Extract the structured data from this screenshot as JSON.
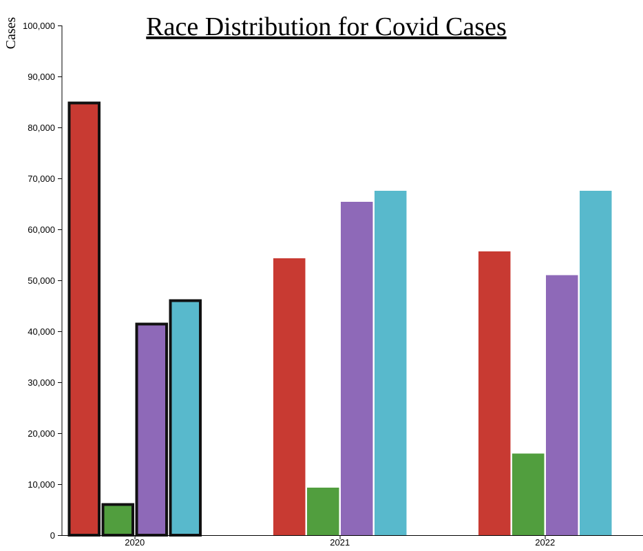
{
  "chart_data": {
    "type": "bar",
    "title": "Race Distribution for Covid Cases",
    "ylabel": "Cases",
    "xlabel": "",
    "categories": [
      "2020",
      "2021",
      "2022"
    ],
    "ylim": [
      0,
      100000
    ],
    "yticks": [
      0,
      10000,
      20000,
      30000,
      40000,
      50000,
      60000,
      70000,
      80000,
      90000,
      100000
    ],
    "ytick_labels": [
      "0",
      "10,000",
      "20,000",
      "30,000",
      "40,000",
      "50,000",
      "60,000",
      "70,000",
      "80,000",
      "90,000",
      "100,000"
    ],
    "grid": false,
    "legend": "none",
    "series": [
      {
        "color": "#c83a32",
        "values": [
          85000,
          54300,
          55700
        ]
      },
      {
        "color": "#519e3e",
        "values": [
          6200,
          9300,
          16000
        ]
      },
      {
        "color": "#8e69b8",
        "values": [
          41600,
          65400,
          51000
        ]
      },
      {
        "color": "#58b9cc",
        "values": [
          46200,
          67600,
          67600
        ]
      }
    ],
    "highlighted_category": "2020"
  }
}
